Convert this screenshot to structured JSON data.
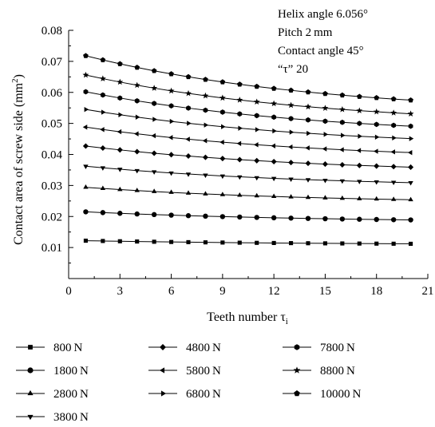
{
  "chart_data": {
    "type": "line",
    "xlabel": "Teeth number τ",
    "xlabel_sub": "i",
    "ylabel": "Contact area of screw side (mm",
    "ylabel_sup": "2",
    "ylabel_close": ")",
    "xlim": [
      0,
      21
    ],
    "ylim": [
      0,
      0.08
    ],
    "x_ticks": [
      "0",
      "3",
      "6",
      "9",
      "12",
      "15",
      "18",
      "21"
    ],
    "y_ticks": [
      "0.01",
      "0.02",
      "0.03",
      "0.04",
      "0.05",
      "0.06",
      "0.07",
      "0.08"
    ],
    "grid": false,
    "annotations": [
      "Helix angle 6.056°",
      "Pitch 2 mm",
      "Contact angle 45°",
      "“τ” 20"
    ],
    "x": [
      1,
      2,
      3,
      4,
      5,
      6,
      7,
      8,
      9,
      10,
      11,
      12,
      13,
      14,
      15,
      16,
      17,
      18,
      19,
      20
    ],
    "series": [
      {
        "name": "800 N",
        "marker": "square",
        "start": 0.0122,
        "end": 0.0112
      },
      {
        "name": "1800 N",
        "marker": "circle",
        "start": 0.0215,
        "end": 0.0189
      },
      {
        "name": "2800 N",
        "marker": "triangle-up",
        "start": 0.0294,
        "end": 0.0254
      },
      {
        "name": "3800 N",
        "marker": "triangle-down",
        "start": 0.0362,
        "end": 0.0309
      },
      {
        "name": "4800 N",
        "marker": "diamond",
        "start": 0.0427,
        "end": 0.0359
      },
      {
        "name": "5800 N",
        "marker": "triangle-left",
        "start": 0.0488,
        "end": 0.0406
      },
      {
        "name": "6800 N",
        "marker": "triangle-right",
        "start": 0.0545,
        "end": 0.0451
      },
      {
        "name": "7800 N",
        "marker": "hexagon",
        "start": 0.0602,
        "end": 0.0491
      },
      {
        "name": "8800 N",
        "marker": "star",
        "start": 0.0656,
        "end": 0.0531
      },
      {
        "name": "10000 N",
        "marker": "pentagon",
        "start": 0.0718,
        "end": 0.0575
      }
    ],
    "legend_order": [
      0,
      4,
      7,
      1,
      5,
      8,
      2,
      6,
      9,
      3
    ],
    "legend_placement": "bottom"
  }
}
